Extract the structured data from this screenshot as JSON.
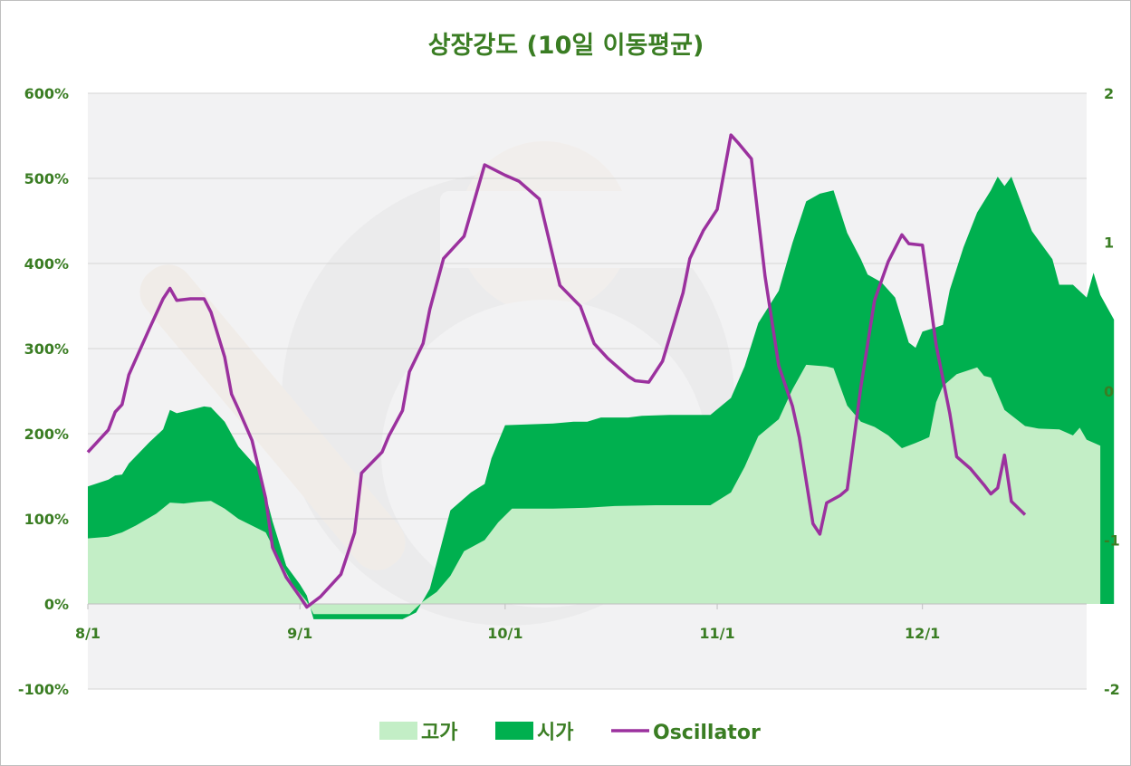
{
  "chart_data": {
    "type": "area",
    "title": "상장강도 (10일 이동평균)",
    "x_tick_labels": [
      "8/1",
      "9/1",
      "10/1",
      "11/1",
      "12/1"
    ],
    "x_tick_positions": [
      0,
      31,
      61,
      92,
      122
    ],
    "x_count": 147,
    "y_left": {
      "range": [
        -100,
        600
      ],
      "ticks": [
        600,
        500,
        400,
        300,
        200,
        100,
        0,
        -100
      ],
      "labels": [
        "600%",
        "500%",
        "400%",
        "300%",
        "200%",
        "100%",
        "0%",
        "-100%"
      ]
    },
    "y_right": {
      "range": [
        -2,
        2
      ],
      "ticks": [
        2,
        1,
        0,
        -1,
        -2
      ],
      "labels": [
        "2",
        "1",
        "0",
        "-1",
        "-2"
      ]
    },
    "series": [
      {
        "name": "고가",
        "axis": "left",
        "kind": "area",
        "color": "#c3eec6",
        "points": [
          [
            0,
            77
          ],
          [
            3,
            79
          ],
          [
            5,
            84
          ],
          [
            7,
            92
          ],
          [
            10,
            106
          ],
          [
            12,
            119
          ],
          [
            14,
            118
          ],
          [
            16,
            120
          ],
          [
            18,
            121
          ],
          [
            20,
            112
          ],
          [
            22,
            100
          ],
          [
            24,
            92
          ],
          [
            26,
            84
          ],
          [
            28,
            52
          ],
          [
            30,
            22
          ],
          [
            32,
            3
          ],
          [
            33,
            -12
          ],
          [
            35,
            -12
          ],
          [
            42,
            -12
          ],
          [
            47,
            -12
          ],
          [
            49,
            3
          ],
          [
            51,
            14
          ],
          [
            53,
            33
          ],
          [
            55,
            62
          ],
          [
            58,
            75
          ],
          [
            60,
            96
          ],
          [
            62,
            112
          ],
          [
            68,
            112
          ],
          [
            73,
            113
          ],
          [
            77,
            115
          ],
          [
            83,
            116
          ],
          [
            87,
            116
          ],
          [
            91,
            116
          ],
          [
            94,
            131
          ],
          [
            96,
            161
          ],
          [
            98,
            197
          ],
          [
            101,
            217
          ],
          [
            103,
            252
          ],
          [
            105,
            281
          ],
          [
            108,
            279
          ],
          [
            109,
            277
          ],
          [
            111,
            233
          ],
          [
            113,
            214
          ],
          [
            115,
            208
          ],
          [
            117,
            198
          ],
          [
            119,
            183
          ],
          [
            121,
            189
          ],
          [
            123,
            196
          ],
          [
            124,
            237
          ],
          [
            125,
            256
          ],
          [
            127,
            270
          ],
          [
            130,
            278
          ],
          [
            131,
            268
          ],
          [
            132,
            266
          ],
          [
            134,
            228
          ],
          [
            137,
            209
          ],
          [
            139,
            206
          ],
          [
            142,
            205
          ],
          [
            144,
            198
          ],
          [
            145,
            207
          ],
          [
            146,
            193
          ],
          [
            148,
            186
          ]
        ]
      },
      {
        "name": "시가",
        "axis": "left",
        "kind": "area",
        "color": "#00b04f",
        "points": [
          [
            0,
            138
          ],
          [
            3,
            146
          ],
          [
            4,
            151
          ],
          [
            5,
            152
          ],
          [
            6,
            165
          ],
          [
            9,
            190
          ],
          [
            11,
            205
          ],
          [
            12,
            228
          ],
          [
            13,
            224
          ],
          [
            15,
            228
          ],
          [
            17,
            232
          ],
          [
            18,
            231
          ],
          [
            20,
            214
          ],
          [
            22,
            185
          ],
          [
            25,
            158
          ],
          [
            27,
            97
          ],
          [
            29,
            45
          ],
          [
            31,
            23
          ],
          [
            32,
            10
          ],
          [
            33,
            -18
          ],
          [
            35,
            -18
          ],
          [
            42,
            -18
          ],
          [
            46,
            -18
          ],
          [
            48,
            -10
          ],
          [
            50,
            18
          ],
          [
            53,
            110
          ],
          [
            56,
            131
          ],
          [
            58,
            141
          ],
          [
            59,
            171
          ],
          [
            61,
            210
          ],
          [
            68,
            212
          ],
          [
            71,
            214
          ],
          [
            73,
            214
          ],
          [
            75,
            219
          ],
          [
            79,
            219
          ],
          [
            81,
            221
          ],
          [
            85,
            222
          ],
          [
            91,
            222
          ],
          [
            94,
            242
          ],
          [
            96,
            279
          ],
          [
            98,
            330
          ],
          [
            101,
            368
          ],
          [
            103,
            424
          ],
          [
            105,
            473
          ],
          [
            107,
            482
          ],
          [
            109,
            486
          ],
          [
            111,
            436
          ],
          [
            113,
            405
          ],
          [
            114,
            387
          ],
          [
            116,
            378
          ],
          [
            118,
            360
          ],
          [
            120,
            307
          ],
          [
            121,
            301
          ],
          [
            122,
            320
          ],
          [
            124,
            325
          ],
          [
            125,
            328
          ],
          [
            126,
            369
          ],
          [
            128,
            419
          ],
          [
            130,
            460
          ],
          [
            132,
            486
          ],
          [
            133,
            502
          ],
          [
            134,
            491
          ],
          [
            135,
            502
          ],
          [
            137,
            459
          ],
          [
            138,
            438
          ],
          [
            141,
            405
          ],
          [
            142,
            375
          ],
          [
            144,
            375
          ],
          [
            146,
            360
          ],
          [
            147,
            389
          ],
          [
            148,
            363
          ],
          [
            150,
            334
          ]
        ]
      },
      {
        "name": "Oscillator",
        "axis": "right",
        "kind": "line",
        "color": "#9b319e",
        "points": [
          [
            0,
            -0.41
          ],
          [
            3,
            -0.26
          ],
          [
            4,
            -0.14
          ],
          [
            5,
            -0.09
          ],
          [
            6,
            0.11
          ],
          [
            9,
            0.42
          ],
          [
            11,
            0.62
          ],
          [
            12,
            0.69
          ],
          [
            13,
            0.61
          ],
          [
            15,
            0.62
          ],
          [
            17,
            0.62
          ],
          [
            18,
            0.53
          ],
          [
            20,
            0.23
          ],
          [
            21,
            -0.02
          ],
          [
            22,
            -0.12
          ],
          [
            24,
            -0.33
          ],
          [
            26,
            -0.72
          ],
          [
            27,
            -1.05
          ],
          [
            29,
            -1.25
          ],
          [
            31,
            -1.38
          ],
          [
            32,
            -1.45
          ],
          [
            34,
            -1.38
          ],
          [
            37,
            -1.23
          ],
          [
            39,
            -0.95
          ],
          [
            40,
            -0.55
          ],
          [
            43,
            -0.41
          ],
          [
            44,
            -0.3
          ],
          [
            46,
            -0.13
          ],
          [
            47,
            0.13
          ],
          [
            49,
            0.32
          ],
          [
            50,
            0.55
          ],
          [
            52,
            0.89
          ],
          [
            55,
            1.04
          ],
          [
            58,
            1.52
          ],
          [
            61,
            1.45
          ],
          [
            63,
            1.41
          ],
          [
            66,
            1.29
          ],
          [
            69,
            0.71
          ],
          [
            72,
            0.57
          ],
          [
            74,
            0.32
          ],
          [
            76,
            0.22
          ],
          [
            79,
            0.1
          ],
          [
            80,
            0.07
          ],
          [
            82,
            0.06
          ],
          [
            84,
            0.2
          ],
          [
            87,
            0.66
          ],
          [
            88,
            0.89
          ],
          [
            90,
            1.08
          ],
          [
            92,
            1.22
          ],
          [
            94,
            1.72
          ],
          [
            95,
            1.67
          ],
          [
            97,
            1.56
          ],
          [
            99,
            0.77
          ],
          [
            101,
            0.17
          ],
          [
            103,
            -0.1
          ],
          [
            104,
            -0.31
          ],
          [
            106,
            -0.89
          ],
          [
            107,
            -0.96
          ],
          [
            108,
            -0.75
          ],
          [
            110,
            -0.7
          ],
          [
            111,
            -0.66
          ],
          [
            113,
            0.03
          ],
          [
            115,
            0.61
          ],
          [
            117,
            0.87
          ],
          [
            119,
            1.05
          ],
          [
            120,
            0.99
          ],
          [
            122,
            0.98
          ],
          [
            123,
            0.65
          ],
          [
            124,
            0.31
          ],
          [
            126,
            -0.15
          ],
          [
            127,
            -0.44
          ],
          [
            129,
            -0.52
          ],
          [
            131,
            -0.63
          ],
          [
            132,
            -0.69
          ],
          [
            133,
            -0.65
          ],
          [
            134,
            -0.43
          ],
          [
            135,
            -0.74
          ],
          [
            137,
            -0.83
          ]
        ]
      }
    ],
    "legend": {
      "position": "bottom",
      "items": [
        "고가",
        "시가",
        "Oscillator"
      ]
    },
    "grid": true,
    "colors": {
      "title": "#3a7d23",
      "axis_text": "#3a7d23",
      "plot_bg": "#ececee",
      "gridline": "#d5d5d5"
    }
  }
}
